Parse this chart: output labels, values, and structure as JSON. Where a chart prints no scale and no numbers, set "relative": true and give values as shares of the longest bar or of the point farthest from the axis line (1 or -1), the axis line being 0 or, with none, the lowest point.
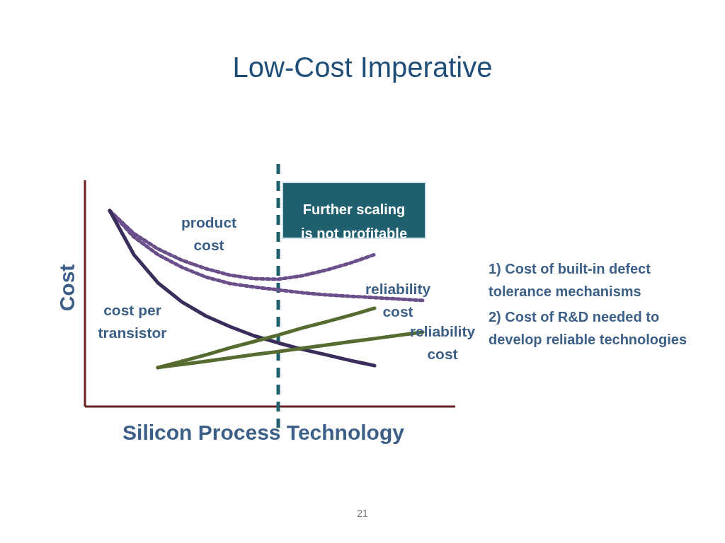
{
  "chart_data": {
    "type": "line",
    "title": "Low-Cost Imperative",
    "xlabel": "Silicon Process Technology",
    "ylabel": "Cost",
    "relative": true,
    "categories": [
      null,
      null,
      null,
      null,
      null,
      null,
      null,
      null,
      null,
      null,
      null,
      null,
      null,
      null
    ],
    "series": [
      {
        "name": "product cost",
        "color": "#6a4f8a",
        "line_style": "dotted",
        "values": [
          1.0,
          0.884,
          0.805,
          0.747,
          0.704,
          0.671,
          0.653,
          0.65,
          0.668,
          0.697,
          0.733,
          0.776,
          null,
          null
        ]
      },
      {
        "color": "#6a4f8a",
        "line_style": "dotted",
        "values": [
          1.0,
          0.866,
          0.776,
          0.711,
          0.661,
          0.628,
          0.61,
          0.596,
          0.581,
          0.57,
          0.563,
          0.556,
          0.549,
          0.542
        ]
      },
      {
        "name": "cost per transistor",
        "color": "#3b2d5c",
        "line_style": "solid",
        "values": [
          1.0,
          0.776,
          0.632,
          0.534,
          0.462,
          0.408,
          0.361,
          0.325,
          0.292,
          0.264,
          0.235,
          0.209,
          null,
          null
        ]
      },
      {
        "name": "reliability cost",
        "color": "#556b2f",
        "line_style": "solid",
        "values": [
          null,
          null,
          0.199,
          0.231,
          0.264,
          0.3,
          0.332,
          0.365,
          0.401,
          0.433,
          0.466,
          0.502,
          null,
          null
        ]
      },
      {
        "name": "reliability cost",
        "color": "#556b2f",
        "line_style": "solid",
        "values": [
          null,
          null,
          0.199,
          0.215,
          0.231,
          0.248,
          0.265,
          0.281,
          0.298,
          0.314,
          0.331,
          0.347,
          0.364,
          0.38
        ]
      }
    ],
    "annotations": [
      "Further scaling is not profitable",
      "1) Cost of built-in defect tolerance mechanisms",
      "2) Cost of R&D needed to develop reliable technologies",
      "21"
    ]
  }
}
